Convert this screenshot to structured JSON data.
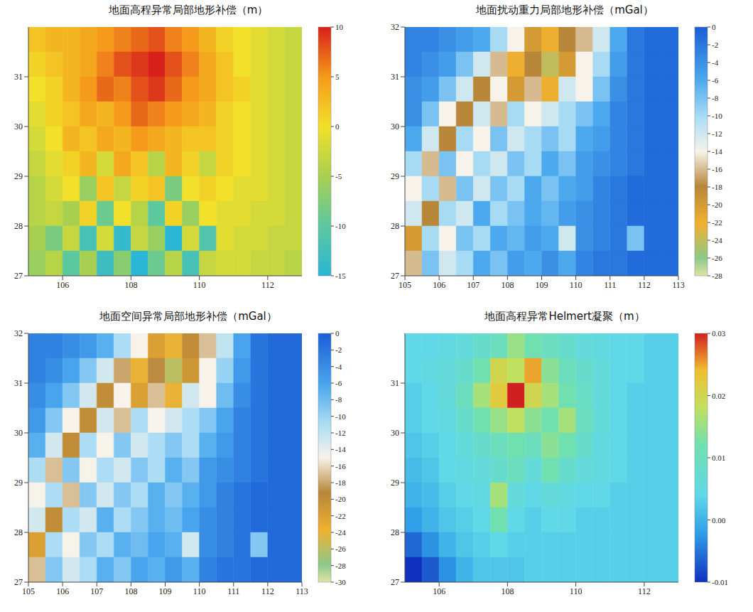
{
  "chart_data": [
    {
      "type": "heatmap",
      "title": "地面高程异常局部地形补偿（m）",
      "x": [
        105.25,
        105.75,
        106.25,
        106.75,
        107.25,
        107.75,
        108.25,
        108.75,
        109.25,
        109.75,
        110.25,
        110.75,
        111.25,
        111.75,
        112.25,
        112.75
      ],
      "y": [
        31.75,
        31.25,
        30.75,
        30.25,
        29.75,
        29.25,
        28.75,
        28.25,
        27.75,
        27.25
      ],
      "cells": [
        [
          2,
          3,
          3,
          4,
          5,
          6,
          7,
          8,
          6,
          5,
          3,
          1,
          0,
          -1,
          -2,
          -3
        ],
        [
          1,
          2,
          3,
          4,
          6,
          8,
          9,
          10,
          8,
          6,
          4,
          2,
          0,
          -1,
          -2,
          -3
        ],
        [
          0,
          1,
          3,
          5,
          7,
          6,
          8,
          9,
          7,
          5,
          4,
          2,
          1,
          -1,
          -2,
          -3
        ],
        [
          -1,
          1,
          2,
          4,
          3,
          5,
          7,
          6,
          5,
          4,
          3,
          1,
          0,
          -1,
          -2,
          -3
        ],
        [
          -2,
          0,
          3,
          2,
          4,
          3,
          5,
          4,
          3,
          2,
          2,
          1,
          0,
          -1,
          -2,
          -3
        ],
        [
          -3,
          -1,
          1,
          3,
          -2,
          4,
          2,
          -4,
          3,
          1,
          -3,
          1,
          0,
          -1,
          -2,
          -3
        ],
        [
          -4,
          -2,
          0,
          -6,
          2,
          -3,
          1,
          2,
          -8,
          0,
          1,
          0,
          -1,
          -1,
          -2,
          -3
        ],
        [
          -4,
          -3,
          -5,
          1,
          -9,
          0,
          -4,
          -10,
          1,
          -6,
          0,
          -1,
          -1,
          -2,
          -2,
          -3
        ],
        [
          -5,
          -8,
          -3,
          -12,
          -2,
          -14,
          -3,
          -6,
          -15,
          -2,
          -11,
          -1,
          -2,
          -2,
          -3,
          -3
        ],
        [
          -6,
          -4,
          -10,
          -5,
          -13,
          -7,
          -15,
          -9,
          -4,
          -12,
          -3,
          -2,
          -2,
          -3,
          -3,
          -4
        ]
      ],
      "xlim": [
        105,
        113
      ],
      "xticks": [
        106,
        108,
        110,
        112
      ],
      "ylim": [
        27,
        32
      ],
      "yticks": [
        27,
        28,
        29,
        30,
        31
      ],
      "zlim": [
        -15,
        10
      ],
      "zticks": [
        10,
        5,
        0,
        -5,
        -10,
        -15
      ]
    },
    {
      "type": "heatmap",
      "title": "地面扰动重力局部地形补偿（mGal）",
      "x": [
        105.25,
        105.75,
        106.25,
        106.75,
        107.25,
        107.75,
        108.25,
        108.75,
        109.25,
        109.75,
        110.25,
        110.75,
        111.25,
        111.75,
        112.25,
        112.75
      ],
      "y": [
        31.75,
        31.25,
        30.75,
        30.25,
        29.75,
        29.25,
        28.75,
        28.25,
        27.75,
        27.25
      ],
      "cells": [
        [
          -3,
          -3,
          -4,
          -5,
          -6,
          -10,
          -14,
          -20,
          -22,
          -18,
          -16,
          -12,
          -6,
          -2,
          -1,
          -1
        ],
        [
          -3,
          -4,
          -5,
          -8,
          -12,
          -16,
          -22,
          -18,
          -24,
          -20,
          -14,
          -10,
          -5,
          -2,
          -1,
          -1
        ],
        [
          -4,
          -5,
          -8,
          -12,
          -18,
          -14,
          -20,
          -16,
          -22,
          -12,
          -14,
          -8,
          -4,
          -2,
          -1,
          -1
        ],
        [
          -4,
          -8,
          -14,
          -18,
          -12,
          -16,
          -10,
          -14,
          -12,
          -10,
          -8,
          -6,
          -3,
          -2,
          -1,
          -1
        ],
        [
          -6,
          -12,
          -18,
          -10,
          -14,
          -8,
          -12,
          -10,
          -8,
          -10,
          -6,
          -5,
          -3,
          -2,
          -1,
          -1
        ],
        [
          -10,
          -16,
          -8,
          -14,
          -10,
          -12,
          -8,
          -10,
          -6,
          -8,
          -5,
          -4,
          -3,
          -2,
          -1,
          -1
        ],
        [
          -14,
          -10,
          -16,
          -8,
          -12,
          -8,
          -10,
          -6,
          -8,
          -6,
          -5,
          -3,
          -2,
          -1,
          -1,
          -1
        ],
        [
          -12,
          -18,
          -10,
          -12,
          -6,
          -10,
          -8,
          -6,
          -7,
          -5,
          -4,
          -3,
          -2,
          -1,
          -1,
          -1
        ],
        [
          -20,
          -10,
          -14,
          -8,
          -10,
          -6,
          -7,
          -5,
          -6,
          -12,
          -4,
          -3,
          -2,
          -8,
          -1,
          -1
        ],
        [
          -16,
          -8,
          -12,
          -10,
          -6,
          -8,
          -5,
          -6,
          -4,
          -6,
          -3,
          -2,
          -2,
          -1,
          -1,
          -1
        ]
      ],
      "xlim": [
        105,
        113
      ],
      "xticks": [
        105,
        106,
        107,
        108,
        109,
        110,
        111,
        112,
        113
      ],
      "ylim": [
        27,
        32
      ],
      "yticks": [
        27,
        28,
        29,
        30,
        31,
        32
      ],
      "zlim": [
        -28,
        0
      ],
      "zticks": [
        0,
        -2,
        -4,
        -6,
        -8,
        -10,
        -12,
        -14,
        -16,
        -18,
        -20,
        -22,
        -24,
        -26,
        -28
      ]
    },
    {
      "type": "heatmap",
      "title": "地面空间异常局部地形补偿（mGal）",
      "x": [
        105.25,
        105.75,
        106.25,
        106.75,
        107.25,
        107.75,
        108.25,
        108.75,
        109.25,
        109.75,
        110.25,
        110.75,
        111.25,
        111.75,
        112.25,
        112.75
      ],
      "y": [
        31.75,
        31.25,
        30.75,
        30.25,
        29.75,
        29.25,
        28.75,
        28.25,
        27.75,
        27.25
      ],
      "cells": [
        [
          -3,
          -3,
          -4,
          -5,
          -7,
          -11,
          -15,
          -22,
          -24,
          -20,
          -17,
          -12,
          -6,
          -2,
          -1,
          -1
        ],
        [
          -3,
          -4,
          -6,
          -9,
          -13,
          -18,
          -24,
          -19,
          -26,
          -21,
          -15,
          -10,
          -5,
          -2,
          -1,
          -1
        ],
        [
          -4,
          -6,
          -9,
          -13,
          -20,
          -15,
          -22,
          -17,
          -24,
          -13,
          -15,
          -8,
          -4,
          -2,
          -1,
          -1
        ],
        [
          -5,
          -9,
          -15,
          -20,
          -13,
          -17,
          -11,
          -15,
          -13,
          -11,
          -9,
          -6,
          -3,
          -2,
          -1,
          -1
        ],
        [
          -7,
          -13,
          -20,
          -11,
          -15,
          -9,
          -13,
          -11,
          -9,
          -11,
          -7,
          -5,
          -3,
          -2,
          -1,
          -1
        ],
        [
          -11,
          -17,
          -9,
          -15,
          -11,
          -13,
          -9,
          -11,
          -7,
          -9,
          -5,
          -4,
          -3,
          -2,
          -1,
          -1
        ],
        [
          -15,
          -11,
          -17,
          -9,
          -13,
          -9,
          -11,
          -7,
          -9,
          -7,
          -5,
          -3,
          -2,
          -1,
          -1,
          -1
        ],
        [
          -13,
          -20,
          -11,
          -13,
          -7,
          -11,
          -9,
          -7,
          -8,
          -6,
          -4,
          -3,
          -2,
          -1,
          -1,
          -1
        ],
        [
          -22,
          -11,
          -15,
          -9,
          -11,
          -7,
          -8,
          -6,
          -7,
          -13,
          -4,
          -3,
          -2,
          -9,
          -1,
          -1
        ],
        [
          -17,
          -9,
          -13,
          -11,
          -7,
          -9,
          -6,
          -7,
          -5,
          -7,
          -3,
          -2,
          -2,
          -1,
          -1,
          -1
        ]
      ],
      "xlim": [
        105,
        113
      ],
      "xticks": [
        105,
        106,
        107,
        108,
        109,
        110,
        111,
        112,
        113
      ],
      "ylim": [
        27,
        32
      ],
      "yticks": [
        27,
        28,
        29,
        30,
        31,
        32
      ],
      "zlim": [
        -30,
        0
      ],
      "zticks": [
        0,
        -2,
        -4,
        -6,
        -8,
        -10,
        -12,
        -14,
        -16,
        -18,
        -20,
        -22,
        -24,
        -26,
        -28,
        -30
      ]
    },
    {
      "type": "heatmap",
      "title": "地面高程异常Helmert凝聚（m）",
      "x": [
        105.25,
        105.75,
        106.25,
        106.75,
        107.25,
        107.75,
        108.25,
        108.75,
        109.25,
        109.75,
        110.25,
        110.75,
        111.25,
        111.75,
        112.25,
        112.75
      ],
      "y": [
        31.75,
        31.25,
        30.75,
        30.25,
        29.75,
        29.25,
        28.75,
        28.25,
        27.75,
        27.25
      ],
      "cells": [
        [
          0.004,
          0.004,
          0.005,
          0.006,
          0.008,
          0.01,
          0.015,
          0.012,
          0.01,
          0.008,
          0.006,
          0.005,
          0.004,
          0.004,
          0.003,
          0.003
        ],
        [
          0.004,
          0.005,
          0.006,
          0.008,
          0.012,
          0.02,
          0.018,
          0.025,
          0.014,
          0.01,
          0.008,
          0.006,
          0.004,
          0.004,
          0.003,
          0.003
        ],
        [
          0.003,
          0.004,
          0.006,
          0.01,
          0.016,
          0.022,
          0.03,
          0.02,
          0.016,
          0.012,
          0.009,
          0.006,
          0.004,
          0.003,
          0.003,
          0.003
        ],
        [
          0.003,
          0.004,
          0.005,
          0.008,
          0.012,
          0.015,
          0.018,
          0.014,
          0.012,
          0.016,
          0.01,
          0.006,
          0.004,
          0.003,
          0.003,
          0.003
        ],
        [
          0.002,
          0.003,
          0.004,
          0.006,
          0.008,
          0.01,
          0.012,
          0.01,
          0.014,
          0.012,
          0.008,
          0.005,
          0.004,
          0.003,
          0.003,
          0.003
        ],
        [
          0.001,
          0.002,
          0.004,
          0.005,
          0.006,
          0.008,
          0.01,
          0.006,
          0.012,
          0.008,
          0.006,
          0.005,
          0.004,
          0.003,
          0.003,
          0.003
        ],
        [
          0,
          0.001,
          0.003,
          0.004,
          0.005,
          0.016,
          0.006,
          0.004,
          0.006,
          0.005,
          0.004,
          0.004,
          0.003,
          0.003,
          0.003,
          0.003
        ],
        [
          -0.002,
          0,
          0.002,
          0.003,
          0.004,
          0.012,
          0.004,
          0.003,
          0.004,
          0.004,
          0.003,
          0.003,
          0.003,
          0.003,
          0.003,
          0.003
        ],
        [
          -0.006,
          -0.003,
          0,
          0.002,
          0.003,
          0.004,
          0.003,
          0.003,
          0.003,
          0.003,
          0.003,
          0.003,
          0.003,
          0.003,
          0.003,
          0.003
        ],
        [
          -0.01,
          -0.007,
          -0.003,
          0,
          0.002,
          0.002,
          0.002,
          0.003,
          0.003,
          0.003,
          0.003,
          0.003,
          0.003,
          0.003,
          0.003,
          0.003
        ]
      ],
      "xlim": [
        105,
        113
      ],
      "xticks": [
        106,
        108,
        110,
        112
      ],
      "ylim": [
        27,
        32
      ],
      "yticks": [
        27,
        28,
        29,
        30,
        31
      ],
      "zlim": [
        -0.01,
        0.03
      ],
      "zticks": [
        0.03,
        0.02,
        0.01,
        {
          "value": 0,
          "label": "0.00"
        },
        -0.01
      ]
    }
  ]
}
